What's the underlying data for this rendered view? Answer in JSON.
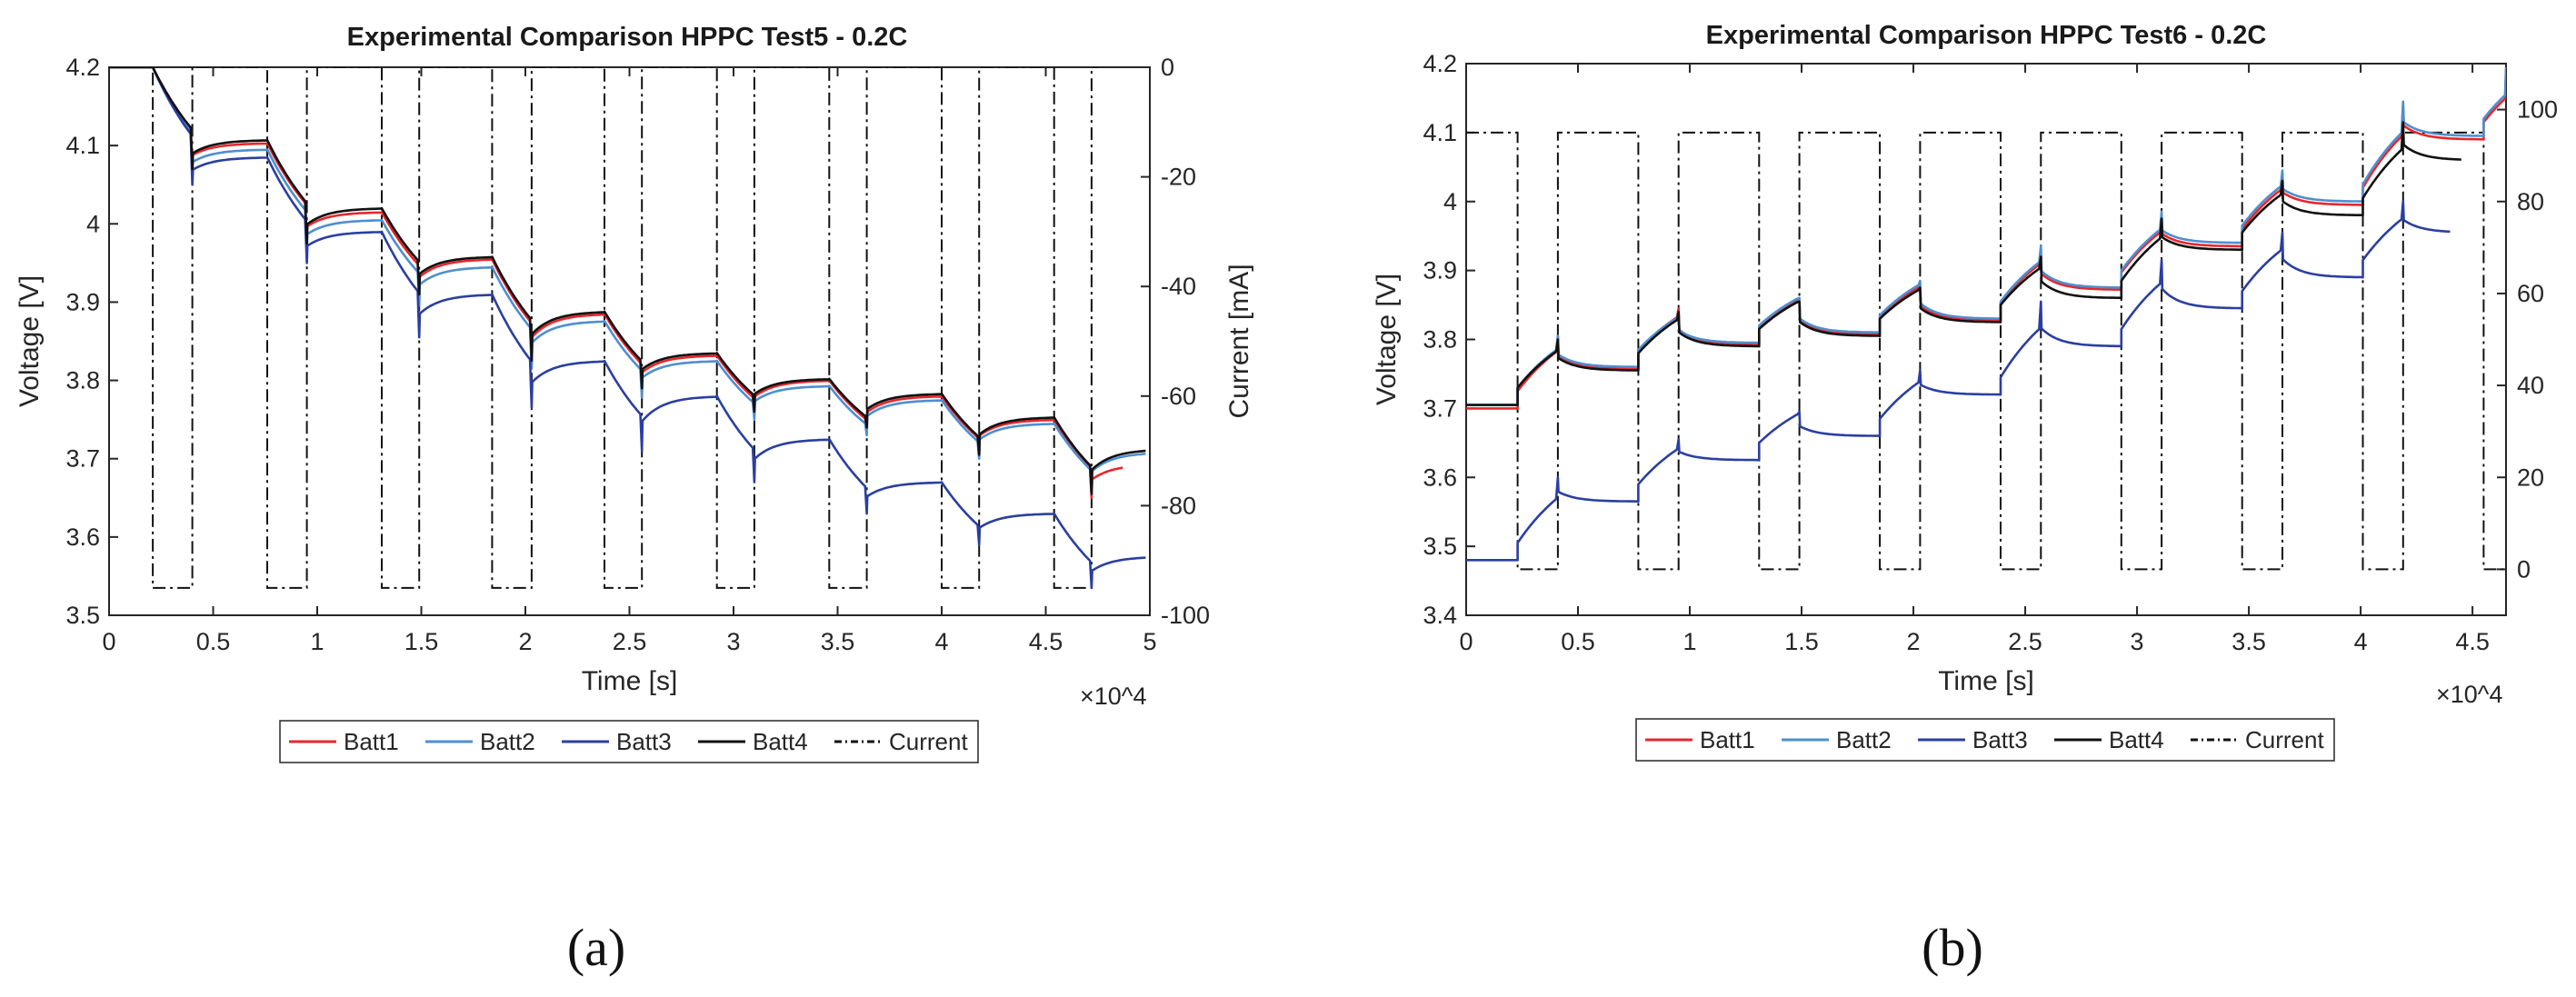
{
  "colors": {
    "Batt1": "#e8262c",
    "Batt2": "#4d8fd0",
    "Batt3": "#2b3fa0",
    "Batt4": "#111111",
    "Current": "#111111",
    "axis": "#262626",
    "frame": "#262626"
  },
  "chart_data": [
    {
      "id": "a",
      "type": "line",
      "title": "Experimental Comparison HPPC Test5 - 0.2C",
      "xlabel": "Time [s]",
      "ylabel": "Voltage [V]",
      "y2label": "Current [mA]",
      "x_exponent_label": "×10^4",
      "caption": "(a)",
      "xlim": [
        0,
        5
      ],
      "ylim": [
        3.5,
        4.2
      ],
      "y2lim": [
        -100,
        0
      ],
      "xticks": [
        0,
        0.5,
        1,
        1.5,
        2,
        2.5,
        3,
        3.5,
        4,
        4.5,
        5
      ],
      "xtick_labels": [
        "0",
        "0.5",
        "1",
        "1.5",
        "2",
        "2.5",
        "3",
        "3.5",
        "4",
        "4.5",
        "5"
      ],
      "yticks": [
        3.5,
        3.6,
        3.7,
        3.8,
        3.9,
        4,
        4.1,
        4.2
      ],
      "ytick_labels": [
        "3.5",
        "3.6",
        "3.7",
        "3.8",
        "3.9",
        "4",
        "4.1",
        "4.2"
      ],
      "y2ticks": [
        -100,
        -80,
        -60,
        -40,
        -20,
        0
      ],
      "y2tick_labels": [
        "-100",
        "-80",
        "-60",
        "-40",
        "-20",
        "0"
      ],
      "pulses": [
        [
          0.21,
          0.4
        ],
        [
          0.76,
          0.95
        ],
        [
          1.31,
          1.49
        ],
        [
          1.84,
          2.03
        ],
        [
          2.38,
          2.56
        ],
        [
          2.92,
          3.1
        ],
        [
          3.46,
          3.64
        ],
        [
          4.0,
          4.18
        ],
        [
          4.54,
          4.72
        ]
      ],
      "current_low": -95,
      "current_high": 0,
      "current_end": 4.75,
      "legend": [
        "Batt1",
        "Batt2",
        "Batt3",
        "Batt4",
        "Current"
      ],
      "series": [
        {
          "name": "Batt1",
          "start": 4.2,
          "drops": [
            4.07,
            3.975,
            3.905,
            3.82,
            3.785,
            3.755,
            3.735,
            3.705,
            3.65
          ],
          "rests": [
            4.103,
            4.015,
            3.955,
            3.885,
            3.832,
            3.8,
            3.78,
            3.75,
            3.693
          ],
          "end_x": 4.87
        },
        {
          "name": "Batt2",
          "start": 4.2,
          "drops": [
            4.06,
            3.965,
            3.895,
            3.815,
            3.778,
            3.75,
            3.73,
            3.7,
            3.655
          ],
          "rests": [
            4.095,
            4.005,
            3.945,
            3.876,
            3.825,
            3.793,
            3.775,
            3.745,
            3.708
          ],
          "end_x": 4.98
        },
        {
          "name": "Batt3",
          "start": 4.2,
          "drops": [
            4.05,
            3.95,
            3.855,
            3.765,
            3.71,
            3.67,
            3.63,
            3.59,
            3.535
          ],
          "rests": [
            4.085,
            3.99,
            3.91,
            3.825,
            3.78,
            3.725,
            3.67,
            3.63,
            3.575
          ],
          "end_x": 4.98
        },
        {
          "name": "Batt4",
          "start": 4.2,
          "drops": [
            4.07,
            3.975,
            3.91,
            3.825,
            3.79,
            3.76,
            3.74,
            3.705,
            3.655
          ],
          "rests": [
            4.107,
            4.02,
            3.958,
            3.888,
            3.835,
            3.802,
            3.783,
            3.753,
            3.712
          ],
          "end_x": 4.98
        }
      ]
    },
    {
      "id": "b",
      "type": "line",
      "title": "Experimental Comparison HPPC Test6 - 0.2C",
      "xlabel": "Time [s]",
      "ylabel": "Voltage [V]",
      "y2label": "",
      "x_exponent_label": "×10^4",
      "caption": "(b)",
      "xlim": [
        0,
        4.65
      ],
      "ylim": [
        3.4,
        4.2
      ],
      "y2lim": [
        -10,
        110
      ],
      "xticks": [
        0,
        0.5,
        1,
        1.5,
        2,
        2.5,
        3,
        3.5,
        4,
        4.5
      ],
      "xtick_labels": [
        "0",
        "0.5",
        "1",
        "1.5",
        "2",
        "2.5",
        "3",
        "3.5",
        "4",
        "4.5"
      ],
      "yticks": [
        3.4,
        3.5,
        3.6,
        3.7,
        3.8,
        3.9,
        4,
        4.1,
        4.2
      ],
      "ytick_labels": [
        "3.4",
        "3.5",
        "3.6",
        "3.7",
        "3.8",
        "3.9",
        "4",
        "4.1",
        "4.2"
      ],
      "y2ticks": [
        0,
        20,
        40,
        60,
        80,
        100
      ],
      "y2tick_labels": [
        "0",
        "20",
        "40",
        "60",
        "80",
        "100"
      ],
      "pulses": [
        [
          0.23,
          0.41
        ],
        [
          0.77,
          0.95
        ],
        [
          1.31,
          1.49
        ],
        [
          1.85,
          2.03
        ],
        [
          2.39,
          2.57
        ],
        [
          2.93,
          3.11
        ],
        [
          3.47,
          3.65
        ],
        [
          4.01,
          4.19
        ],
        [
          4.55,
          4.65
        ]
      ],
      "current_low": 0,
      "current_high": 95,
      "current_end": 4.65,
      "legend": [
        "Batt1",
        "Batt2",
        "Batt3",
        "Batt4",
        "Current"
      ],
      "series": [
        {
          "name": "Batt1",
          "start": 3.7,
          "peaks": [
            3.805,
            3.845,
            3.86,
            3.88,
            3.93,
            3.98,
            4.04,
            4.14,
            4.19
          ],
          "rests": [
            3.758,
            3.793,
            3.808,
            3.828,
            3.872,
            3.935,
            3.995,
            4.09,
            4.09
          ],
          "end_x": 4.65
        },
        {
          "name": "Batt2",
          "start": 3.705,
          "peaks": [
            3.805,
            3.84,
            3.86,
            3.885,
            3.935,
            3.985,
            4.045,
            4.145,
            4.195
          ],
          "rests": [
            3.76,
            3.795,
            3.81,
            3.83,
            3.875,
            3.94,
            4.0,
            4.095,
            4.095
          ],
          "end_x": 4.65
        },
        {
          "name": "Batt3",
          "start": 3.48,
          "peaks": [
            3.6,
            3.655,
            3.695,
            3.755,
            3.855,
            3.915,
            3.955,
            4.0
          ],
          "rests": [
            3.565,
            3.625,
            3.66,
            3.72,
            3.79,
            3.845,
            3.89,
            3.955
          ],
          "end_x": 4.4
        },
        {
          "name": "Batt4",
          "start": 3.705,
          "peaks": [
            3.8,
            3.84,
            3.855,
            3.875,
            3.92,
            3.975,
            4.03,
            4.115
          ],
          "rests": [
            3.755,
            3.79,
            3.805,
            3.825,
            3.86,
            3.93,
            3.98,
            4.06
          ],
          "end_x": 4.45
        }
      ]
    }
  ]
}
